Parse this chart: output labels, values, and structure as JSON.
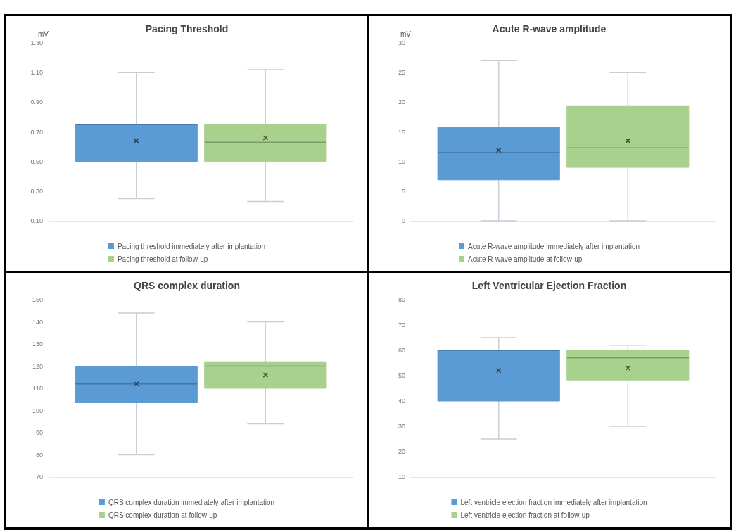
{
  "chart_data": [
    {
      "type": "box",
      "title": "Pacing Threshold",
      "ylabel": "mV",
      "categories": [
        null
      ],
      "tick_labels": "y",
      "legend": "bottom",
      "grid": false,
      "marker": "cross",
      "ylim": [
        0.1,
        1.3
      ],
      "yticks": [
        {
          "value": 0.1,
          "label": "0.10"
        },
        {
          "value": 0.3,
          "label": "0.30"
        },
        {
          "value": 0.5,
          "label": "0.50"
        },
        {
          "value": 0.7,
          "label": "0.70"
        },
        {
          "value": 0.9,
          "label": "0.90"
        },
        {
          "value": 1.1,
          "label": "1.10"
        },
        {
          "value": 1.3,
          "label": "1.30"
        }
      ],
      "series": [
        {
          "name": "Pacing threshold immediately after implantation",
          "color": "#5b9bd5",
          "boxes": [
            {
              "low": 0.25,
              "q1": 0.5,
              "median": 0.75,
              "q3": 0.75,
              "high": 1.1,
              "mean": 0.64
            }
          ]
        },
        {
          "name": "Pacing threshold at follow-up",
          "color": "#a9d18e",
          "boxes": [
            {
              "low": 0.23,
              "q1": 0.5,
              "median": 0.63,
              "q3": 0.75,
              "high": 1.12,
              "mean": 0.66
            }
          ]
        }
      ]
    },
    {
      "type": "box",
      "title": "Acute R-wave amplitude",
      "ylabel": "mV",
      "categories": [
        null
      ],
      "tick_labels": "y",
      "legend": "bottom",
      "grid": false,
      "marker": "cross",
      "ylim": [
        0,
        30
      ],
      "yticks": [
        0,
        5,
        10,
        15,
        20,
        25,
        30
      ],
      "series": [
        {
          "name": "Acute R-wave amplitude immediately after implantation",
          "color": "#5b9bd5",
          "boxes": [
            {
              "low": 0,
              "q1": 6.9,
              "median": 11.5,
              "q3": 15.8,
              "high": 27,
              "mean": 11.9
            }
          ]
        },
        {
          "name": "Acute R-wave amplitude at follow-up",
          "color": "#a9d18e",
          "boxes": [
            {
              "low": 0,
              "q1": 9,
              "median": 12.3,
              "q3": 19.3,
              "high": 25,
              "mean": 13.5
            }
          ]
        }
      ]
    },
    {
      "type": "box",
      "title": "QRS complex duration",
      "categories": [
        null
      ],
      "tick_labels": "y",
      "legend": "bottom",
      "grid": false,
      "marker": "cross",
      "ylim": [
        70,
        150
      ],
      "yticks": [
        70,
        80,
        90,
        100,
        110,
        120,
        130,
        140,
        150
      ],
      "series": [
        {
          "name": "QRS complex duration immediately after implantation",
          "color": "#5b9bd5",
          "boxes": [
            {
              "low": 80,
              "q1": 103.5,
              "median": 112,
              "q3": 120,
              "high": 144,
              "mean": 112
            }
          ]
        },
        {
          "name": "QRS complex duration at follow-up",
          "color": "#a9d18e",
          "boxes": [
            {
              "low": 94,
              "q1": 110,
              "median": 120,
              "q3": 122,
              "high": 140,
              "mean": 116
            }
          ]
        }
      ]
    },
    {
      "type": "box",
      "title": "Left Ventricular Ejection Fraction",
      "categories": [
        null
      ],
      "tick_labels": "y",
      "legend": "bottom",
      "grid": false,
      "marker": "cross",
      "ylim": [
        10,
        80
      ],
      "yticks": [
        10,
        20,
        30,
        40,
        50,
        60,
        70,
        80
      ],
      "series": [
        {
          "name": "Left ventricle ejection fraction immediately after implantation",
          "color": "#5b9bd5",
          "boxes": [
            {
              "low": 25,
              "q1": 40,
              "median": 60,
              "q3": 60,
              "high": 65,
              "mean": 52
            }
          ]
        },
        {
          "name": "Left ventricle ejection fraction at follow-up",
          "color": "#a9d18e",
          "boxes": [
            {
              "low": 30,
              "q1": 48,
              "median": 57,
              "q3": 60,
              "high": 62,
              "mean": 53
            }
          ]
        }
      ]
    }
  ]
}
